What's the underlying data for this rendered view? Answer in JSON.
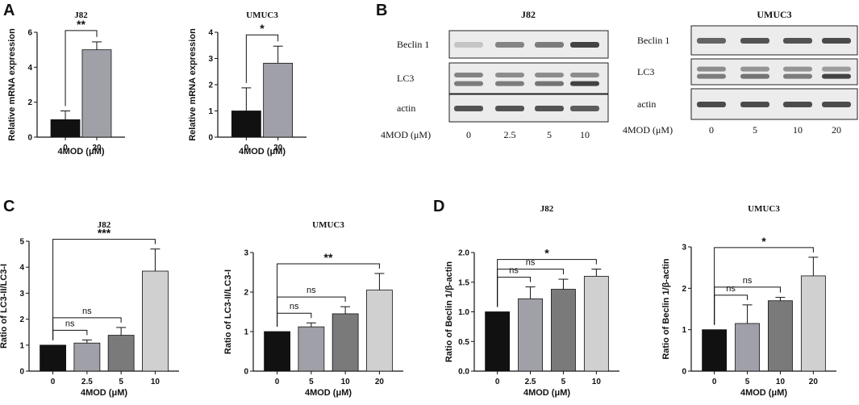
{
  "panels": {
    "A": "A",
    "B": "B",
    "C": "C",
    "D": "D"
  },
  "blots": [
    {
      "title": "J82",
      "rows": [
        "Beclin 1",
        "LC3",
        "actin"
      ],
      "x_label": "4MOD (μM)",
      "doses": [
        "0",
        "2.5",
        "5",
        "10"
      ],
      "beclin_intensity": [
        0.15,
        0.55,
        0.6,
        0.95
      ],
      "lc3_upper_intensity": [
        0.55,
        0.5,
        0.5,
        0.5
      ],
      "lc3_lower_intensity": [
        0.6,
        0.6,
        0.65,
        0.95
      ],
      "actin_intensity": [
        0.85,
        0.85,
        0.85,
        0.8
      ]
    },
    {
      "title": "UMUC3",
      "rows": [
        "Beclin 1",
        "LC3",
        "actin"
      ],
      "x_label": "4MOD   (μM)",
      "doses": [
        "0",
        "5",
        "10",
        "20"
      ],
      "beclin_intensity": [
        0.75,
        0.85,
        0.85,
        0.9
      ],
      "lc3_upper_intensity": [
        0.5,
        0.45,
        0.45,
        0.4
      ],
      "lc3_lower_intensity": [
        0.6,
        0.65,
        0.6,
        0.95
      ],
      "actin_intensity": [
        0.9,
        0.9,
        0.9,
        0.9
      ]
    }
  ],
  "chart_data": [
    {
      "id": "A1",
      "type": "bar",
      "title": "J82",
      "categories": [
        "0",
        "20"
      ],
      "values": [
        1.0,
        5.0
      ],
      "errors": [
        0.5,
        0.45
      ],
      "colors": [
        "#111111",
        "#a0a0a8"
      ],
      "ylim": [
        0,
        6
      ],
      "yticks": [
        "0",
        "2",
        "4",
        "6"
      ],
      "ylabel": "Relative mRNA expression",
      "xlabel": "4MOD (μM)",
      "significance": [
        {
          "from": 0,
          "to": 1,
          "label": "**"
        }
      ]
    },
    {
      "id": "A2",
      "type": "bar",
      "title": "UMUC3",
      "categories": [
        "0",
        "20"
      ],
      "values": [
        1.0,
        2.82
      ],
      "errors": [
        0.88,
        0.65
      ],
      "colors": [
        "#111111",
        "#a0a0a8"
      ],
      "ylim": [
        0,
        4
      ],
      "yticks": [
        "0",
        "1",
        "2",
        "3",
        "4"
      ],
      "ylabel": "Relative mRNA expression",
      "xlabel": "4MOD (μM)",
      "significance": [
        {
          "from": 0,
          "to": 1,
          "label": "*"
        }
      ]
    },
    {
      "id": "C1",
      "type": "bar",
      "title": "J82",
      "categories": [
        "0",
        "2.5",
        "5",
        "10"
      ],
      "values": [
        1.0,
        1.08,
        1.38,
        3.85
      ],
      "errors": [
        0.0,
        0.12,
        0.3,
        0.85
      ],
      "colors": [
        "#111111",
        "#a0a0a8",
        "#7a7a7a",
        "#d0d0d0"
      ],
      "ylim": [
        0,
        5
      ],
      "yticks": [
        "0",
        "1",
        "2",
        "3",
        "4",
        "5"
      ],
      "ylabel": "Ratio of LC3-II/LC3-I",
      "xlabel": "4MOD (μM)",
      "significance": [
        {
          "from": 0,
          "to": 1,
          "label": "ns"
        },
        {
          "from": 0,
          "to": 2,
          "label": "ns"
        },
        {
          "from": 0,
          "to": 3,
          "label": "***"
        }
      ]
    },
    {
      "id": "C2",
      "type": "bar",
      "title": "UMUC3",
      "categories": [
        "0",
        "5",
        "10",
        "20"
      ],
      "values": [
        1.0,
        1.12,
        1.45,
        2.05
      ],
      "errors": [
        0.0,
        0.1,
        0.18,
        0.42
      ],
      "colors": [
        "#111111",
        "#a0a0a8",
        "#7a7a7a",
        "#d0d0d0"
      ],
      "ylim": [
        0,
        3
      ],
      "yticks": [
        "0",
        "1",
        "2",
        "3"
      ],
      "ylabel": "Ratio of LC3-II/LC3-I",
      "xlabel": "4MOD (μM)",
      "significance": [
        {
          "from": 0,
          "to": 1,
          "label": "ns"
        },
        {
          "from": 0,
          "to": 2,
          "label": "ns"
        },
        {
          "from": 0,
          "to": 3,
          "label": "**"
        }
      ]
    },
    {
      "id": "D1",
      "type": "bar",
      "title": "J82",
      "categories": [
        "0",
        "2.5",
        "5",
        "10"
      ],
      "values": [
        1.0,
        1.22,
        1.38,
        1.6
      ],
      "errors": [
        0.0,
        0.2,
        0.17,
        0.12
      ],
      "colors": [
        "#111111",
        "#a0a0a8",
        "#7a7a7a",
        "#d0d0d0"
      ],
      "ylim": [
        0,
        2.0
      ],
      "yticks": [
        "0.0",
        "0.5",
        "1.0",
        "1.5",
        "2.0"
      ],
      "ylabel": "Ratio of Beclin 1/β-actin",
      "xlabel": "4MOD (μM)",
      "significance": [
        {
          "from": 0,
          "to": 1,
          "label": "ns"
        },
        {
          "from": 0,
          "to": 2,
          "label": "ns"
        },
        {
          "from": 0,
          "to": 3,
          "label": "*"
        }
      ]
    },
    {
      "id": "D2",
      "type": "bar",
      "title": "UMUC3",
      "categories": [
        "0",
        "5",
        "10",
        "20"
      ],
      "values": [
        1.0,
        1.15,
        1.7,
        2.3
      ],
      "errors": [
        0.0,
        0.45,
        0.08,
        0.45
      ],
      "colors": [
        "#111111",
        "#a0a0a8",
        "#7a7a7a",
        "#d0d0d0"
      ],
      "ylim": [
        0,
        3
      ],
      "yticks": [
        "0",
        "1",
        "2",
        "3"
      ],
      "ylabel": "Ratio of Beclin 1/β-actin",
      "xlabel": "4MOD (μM)",
      "significance": [
        {
          "from": 0,
          "to": 1,
          "label": "ns"
        },
        {
          "from": 0,
          "to": 2,
          "label": "ns"
        },
        {
          "from": 0,
          "to": 3,
          "label": "*"
        }
      ]
    }
  ]
}
